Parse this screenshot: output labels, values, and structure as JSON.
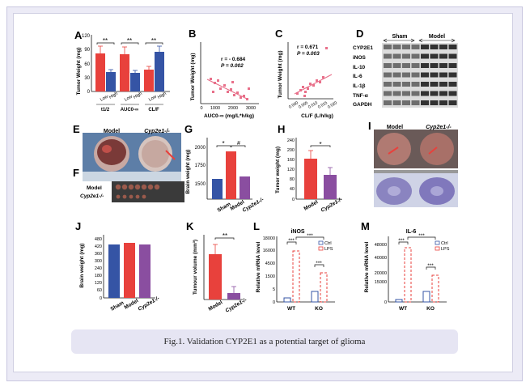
{
  "caption": "Fig.1. Validation CYP2E1 as a potential target of glioma",
  "panel_letters": [
    "A",
    "B",
    "C",
    "D",
    "E",
    "F",
    "G",
    "H",
    "I",
    "J",
    "K",
    "L",
    "M"
  ],
  "panelA": {
    "ylabel": "Tumor Weight (mg)",
    "yticks": [
      "0",
      "30",
      "60",
      "90",
      "120"
    ],
    "groups": [
      "t1/2",
      "AUC0-∞",
      "CL/F"
    ],
    "subgroups": [
      "Low",
      "High"
    ],
    "sig": [
      "**",
      "**",
      "**"
    ]
  },
  "panelB": {
    "ylabel": "Tumor Weight (mg)",
    "xlabel": "AUC0-∞ (mg/L*h/kg)",
    "r": "r = - 0.684",
    "p": "P = 0.002",
    "xticks": [
      "0",
      "1000",
      "2000",
      "3000"
    ]
  },
  "panelC": {
    "ylabel": "Tumor Weight (mg)",
    "xlabel": "CL/F (L/h/kg)",
    "r": "r = 0.671",
    "p": "P = 0.003",
    "xticks": [
      "0.000",
      "0.005",
      "0.010",
      "0.015",
      "0.020"
    ]
  },
  "panelD": {
    "group_labels": [
      "Sham",
      "Model"
    ],
    "rows": [
      "CYP2E1",
      "iNOS",
      "IL-10",
      "IL-6",
      "IL-1β",
      "TNF-α",
      "GAPDH"
    ]
  },
  "panelE": {
    "labels": [
      "Model",
      "Cyp2e1-/-"
    ]
  },
  "panelF": {
    "labels": [
      "Model",
      "Cyp2e1-/-"
    ]
  },
  "panelG": {
    "ylabel": "Brain weight (mg)",
    "yticks": [
      "1500",
      "1750",
      "2000"
    ],
    "categories": [
      "Sham",
      "Model",
      "Cyp2e1-/-"
    ],
    "sig": [
      "*",
      "#"
    ]
  },
  "panelH": {
    "ylabel": "Tumor weight (mg)",
    "yticks": [
      "0",
      "40",
      "80",
      "120",
      "160",
      "200",
      "240"
    ],
    "categories": [
      "Model",
      "Cyp2e1-/-"
    ],
    "sig": "*"
  },
  "panelI": {
    "labels": [
      "Model",
      "Cyp2e1-/-"
    ]
  },
  "panelJ": {
    "ylabel": "Brain weight (mg)",
    "yticks": [
      "0",
      "60",
      "120",
      "180",
      "240",
      "300",
      "360",
      "420",
      "480"
    ],
    "categories": [
      "Sham",
      "Model",
      "Cyp2e1-/-"
    ]
  },
  "panelK": {
    "ylabel": "Tumour volume (mm³)",
    "categories": [
      "Model",
      "Cyp2e1-/-"
    ],
    "sig": "**"
  },
  "panelL": {
    "title": "iNOS",
    "ylabel": "Relative mRNA level",
    "yticks": [
      "0",
      "5",
      "1500",
      "4500",
      "16000",
      "18000"
    ],
    "groups": [
      "WT",
      "KO"
    ],
    "legend": [
      "Ctrl",
      "LPS"
    ],
    "sig": [
      "***",
      "***",
      "***"
    ]
  },
  "panelM": {
    "title": "IL-6",
    "ylabel": "Relative mRNA level",
    "yticks": [
      "0",
      "15000",
      "20000",
      "40000",
      "48000"
    ],
    "groups": [
      "WT",
      "KO"
    ],
    "legend": [
      "Ctrl",
      "LPS"
    ],
    "sig": [
      "***",
      "***",
      "***"
    ]
  },
  "colors": {
    "red": "#e8413c",
    "blue": "#3554a5",
    "purple": "#8a4ea0",
    "pink": "#e8708a"
  }
}
